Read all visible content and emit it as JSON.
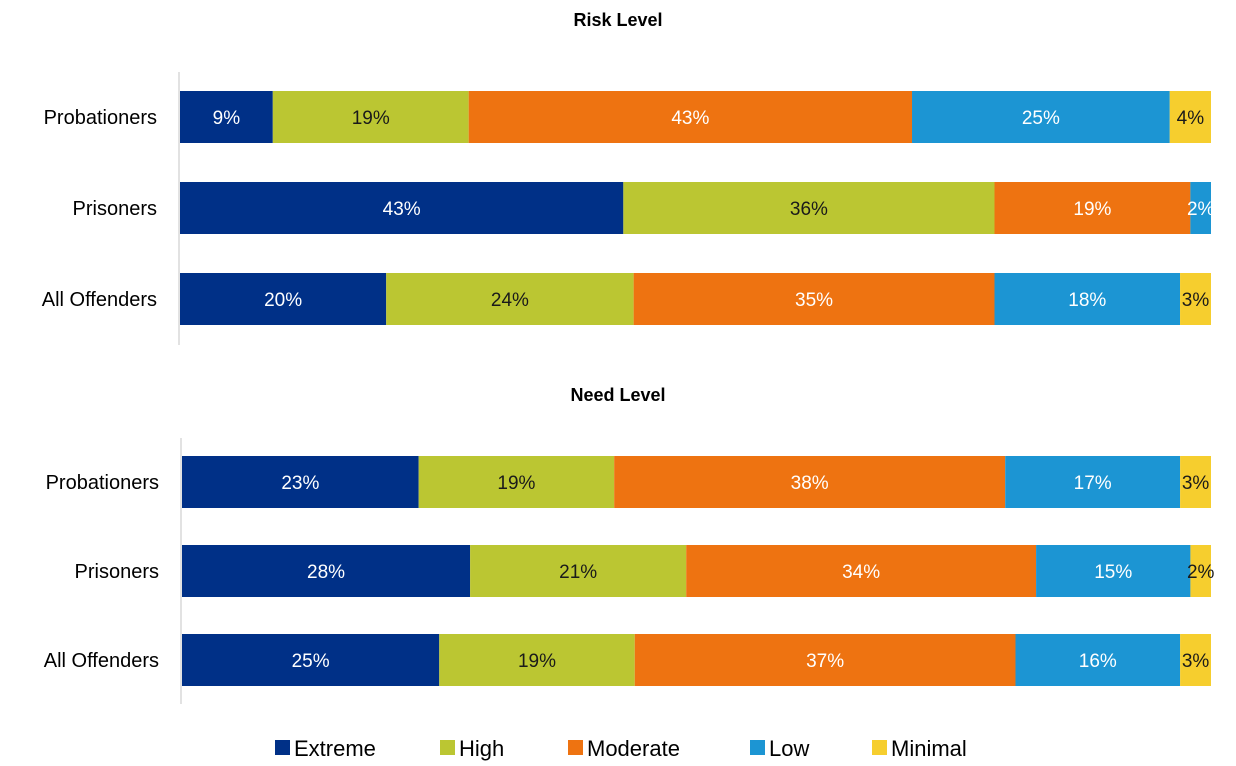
{
  "chart_data": [
    {
      "type": "bar",
      "orientation": "horizontal",
      "stacked": true,
      "title": "Risk Level",
      "categories": [
        "Probationers",
        "Prisoners",
        "All Offenders"
      ],
      "series": [
        {
          "name": "Extreme",
          "values": [
            9,
            43,
            20
          ],
          "labels": [
            "9%",
            "43%",
            "20%"
          ]
        },
        {
          "name": "High",
          "values": [
            19,
            36,
            24
          ],
          "labels": [
            "19%",
            "36%",
            "24%"
          ]
        },
        {
          "name": "Moderate",
          "values": [
            43,
            19,
            35
          ],
          "labels": [
            "43%",
            "19%",
            "35%"
          ]
        },
        {
          "name": "Low",
          "values": [
            25,
            2,
            18
          ],
          "labels": [
            "25%",
            "2%",
            "18%"
          ]
        },
        {
          "name": "Minimal",
          "values": [
            4,
            0,
            3
          ],
          "labels": [
            "4%",
            "",
            "3%"
          ]
        }
      ],
      "xlim": [
        0,
        100
      ],
      "grid": false
    },
    {
      "type": "bar",
      "orientation": "horizontal",
      "stacked": true,
      "title": "Need Level",
      "categories": [
        "Probationers",
        "Prisoners",
        "All Offenders"
      ],
      "series": [
        {
          "name": "Extreme",
          "values": [
            23,
            28,
            25
          ],
          "labels": [
            "23%",
            "28%",
            "25%"
          ]
        },
        {
          "name": "High",
          "values": [
            19,
            21,
            19
          ],
          "labels": [
            "19%",
            "21%",
            "19%"
          ]
        },
        {
          "name": "Moderate",
          "values": [
            38,
            34,
            37
          ],
          "labels": [
            "38%",
            "34%",
            "37%"
          ]
        },
        {
          "name": "Low",
          "values": [
            17,
            15,
            16
          ],
          "labels": [
            "17%",
            "15%",
            "16%"
          ]
        },
        {
          "name": "Minimal",
          "values": [
            3,
            2,
            3
          ],
          "labels": [
            "3%",
            "2%",
            "3%"
          ]
        }
      ],
      "xlim": [
        0,
        100
      ],
      "grid": false
    }
  ],
  "legend": {
    "placement": "bottom",
    "items": [
      {
        "name": "Extreme",
        "color": "#003087"
      },
      {
        "name": "High",
        "color": "#BBC632"
      },
      {
        "name": "Moderate",
        "color": "#EE7311"
      },
      {
        "name": "Low",
        "color": "#1C95D3"
      },
      {
        "name": "Minimal",
        "color": "#F6CE2E"
      }
    ]
  },
  "label_colors": {
    "Extreme": "#FFFFFF",
    "High": "#1A1A1A",
    "Moderate": "#FFFFFF",
    "Low": "#FFFFFF",
    "Minimal": "#1A1A1A"
  }
}
